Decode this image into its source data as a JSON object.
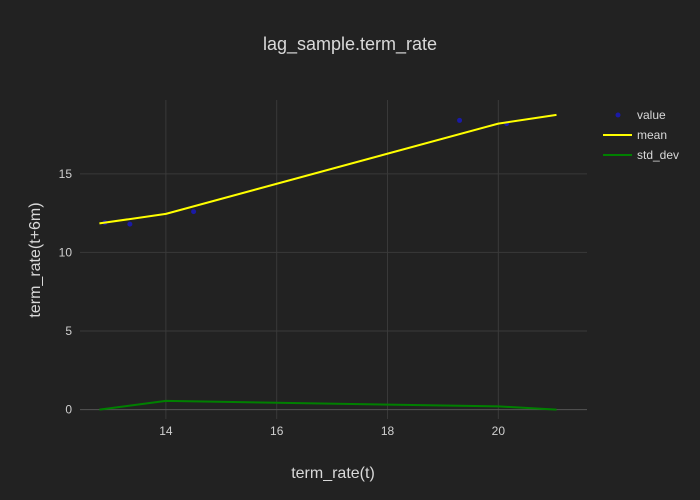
{
  "chart_data": {
    "type": "line",
    "title": "lag_sample.term_rate",
    "xlabel": "term_rate(t)",
    "ylabel": "term_rate(t+6m)",
    "xlim": [
      12.45,
      21.6
    ],
    "ylim": [
      -0.6,
      19.7
    ],
    "xticks": [
      14,
      16,
      18,
      20
    ],
    "yticks": [
      0,
      5,
      10,
      15
    ],
    "grid": true,
    "legend_position": "top-right",
    "series": [
      {
        "name": "value",
        "mode": "markers",
        "color": "#1a1aa6",
        "x": [
          12.9,
          13.35,
          14.5,
          19.3,
          20.15
        ],
        "y": [
          11.9,
          11.8,
          12.6,
          18.4,
          18.2
        ]
      },
      {
        "name": "mean",
        "mode": "lines",
        "color": "#ffff00",
        "x": [
          12.8,
          14.0,
          20.0,
          21.05
        ],
        "y": [
          11.85,
          12.45,
          18.2,
          18.75
        ]
      },
      {
        "name": "std_dev",
        "mode": "lines",
        "color": "#008000",
        "x": [
          12.8,
          14.0,
          20.0,
          21.05
        ],
        "y": [
          0.0,
          0.55,
          0.2,
          0.0
        ]
      }
    ]
  }
}
